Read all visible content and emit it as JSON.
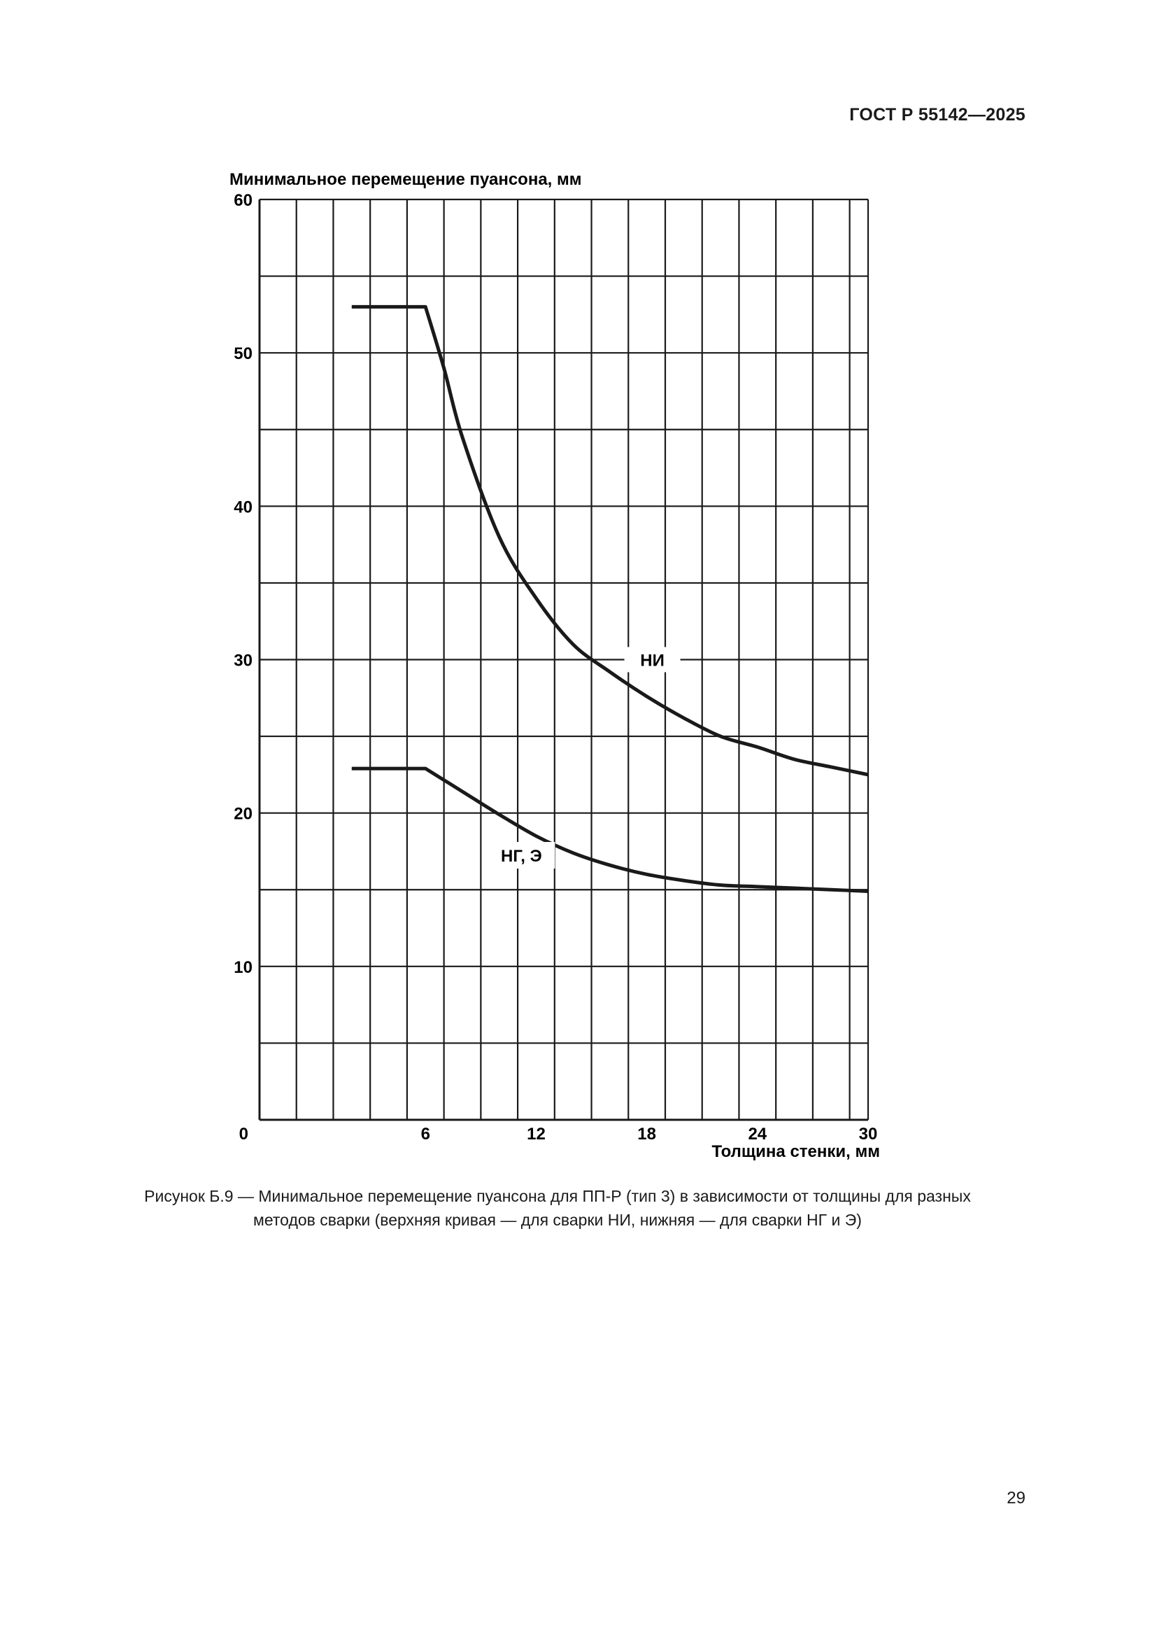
{
  "document": {
    "header": "ГОСТ Р 55142—2025",
    "caption_line1": "Рисунок Б.9 — Минимальное перемещение пуансона для ПП-Р (тип 3) в зависимости от толщины для разных",
    "caption_line2": "методов сварки (верхняя кривая — для сварки НИ, нижняя — для сварки НГ и Э)",
    "page_number": "29"
  },
  "chart_data": {
    "type": "line",
    "title": "",
    "xlabel": "Толщина стенки, мм",
    "ylabel": "Минимальное перемещение пуансона, мм",
    "xlim": [
      -3,
      30
    ],
    "ylim": [
      0,
      60
    ],
    "xticks": [
      0,
      6,
      12,
      18,
      24,
      30
    ],
    "xtick_labels": [
      "0",
      "6",
      "12",
      "18",
      "24",
      "30"
    ],
    "yticks": [
      10,
      20,
      30,
      40,
      50,
      60
    ],
    "ytick_labels": [
      "10",
      "20",
      "30",
      "40",
      "50",
      "60"
    ],
    "grid": {
      "x_step": 2,
      "y_step": 5
    },
    "legend": "inline labels",
    "line_color": "#1a1a1a",
    "grid_color": "#1a1a1a",
    "series": [
      {
        "name": "НИ",
        "x": [
          2,
          6,
          7,
          8,
          10,
          12,
          14,
          16,
          18,
          20,
          22,
          24,
          26,
          28,
          30
        ],
        "y": [
          53,
          53,
          49,
          44.5,
          38,
          34,
          31,
          29.2,
          27.6,
          26.2,
          25,
          24.3,
          23.5,
          23,
          22.5
        ]
      },
      {
        "name": "НГ, Э",
        "x": [
          2,
          6,
          8,
          10,
          12,
          14,
          16,
          18,
          20,
          22,
          24,
          26,
          28,
          30
        ],
        "y": [
          22.9,
          22.9,
          21.4,
          19.9,
          18.5,
          17.4,
          16.6,
          16.0,
          15.6,
          15.3,
          15.2,
          15.1,
          15.0,
          14.9
        ]
      }
    ]
  }
}
